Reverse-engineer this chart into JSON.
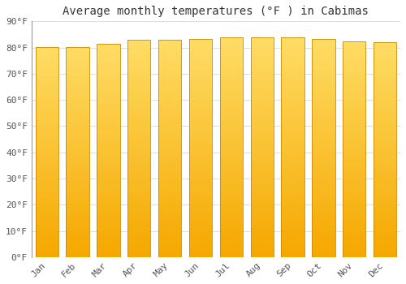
{
  "title": "Average monthly temperatures (°F ) in Cabimas",
  "months": [
    "Jan",
    "Feb",
    "Mar",
    "Apr",
    "May",
    "Jun",
    "Jul",
    "Aug",
    "Sep",
    "Oct",
    "Nov",
    "Dec"
  ],
  "values": [
    80.1,
    80.2,
    81.3,
    82.9,
    83.1,
    83.3,
    83.8,
    84.0,
    83.9,
    83.2,
    82.4,
    82.1
  ],
  "ylim": [
    0,
    90
  ],
  "yticks": [
    0,
    10,
    20,
    30,
    40,
    50,
    60,
    70,
    80,
    90
  ],
  "bar_color_bottom": "#F5A800",
  "bar_color_top": "#FFDD66",
  "bar_edge_color": "#CC8800",
  "bg_color": "#FFFFFF",
  "plot_bg_color": "#FFFFFF",
  "grid_color": "#DDDDDD",
  "title_fontsize": 10,
  "tick_fontsize": 8,
  "font_family": "monospace",
  "bar_width": 0.75
}
